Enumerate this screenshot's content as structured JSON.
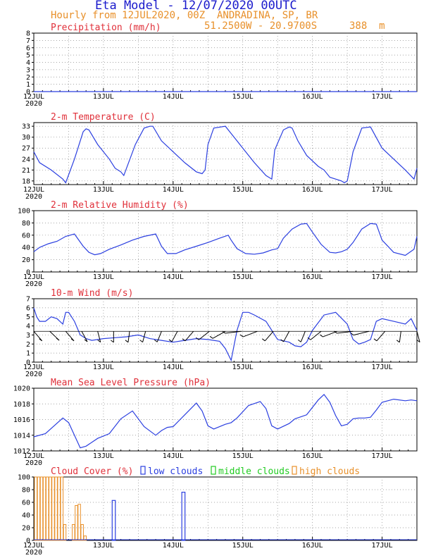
{
  "header": {
    "title": "Eta Model - 12/07/2020 00UTC",
    "subtitle": "Hourly from 12JUL2020, 00Z  ANDRADINA, SP, BR",
    "coords": "51.2500W - 20.9700S",
    "elevation": "388  m"
  },
  "colors": {
    "title": "#1a1acc",
    "subtitle": "#e8902a",
    "panel_title": "#e0303a",
    "series": "#2b3fe0",
    "wind_barb": "#000000",
    "low_clouds": "#2b3fe0",
    "middle_clouds": "#22cc22",
    "high_clouds": "#e8902a"
  },
  "x_axis": {
    "ticks": [
      "12JUL",
      "13JUL",
      "14JUL",
      "15JUL",
      "16JUL",
      "17JUL"
    ],
    "year": "2020",
    "hours": 132
  },
  "chart_data": [
    {
      "type": "line",
      "id": "precip",
      "title": "Precipitation (mm/h)",
      "ylim": [
        0,
        8
      ],
      "yticks": [
        0,
        1,
        2,
        3,
        4,
        5,
        6,
        7,
        8
      ],
      "x_hours": [
        0,
        132
      ],
      "values": [
        0,
        0
      ]
    },
    {
      "type": "line",
      "id": "temp",
      "title": "2-m Temperature (C)",
      "ylim": [
        17,
        34
      ],
      "yticks": [
        18,
        21,
        24,
        27,
        30,
        33
      ],
      "x_hours": [
        0,
        2,
        6,
        10,
        11,
        14,
        17,
        18,
        19,
        22,
        26,
        30,
        28,
        31,
        35,
        38,
        40,
        41,
        44,
        48,
        52,
        56,
        58,
        59,
        60,
        62,
        66,
        68,
        70,
        72,
        76,
        80,
        82,
        83,
        86,
        88,
        89,
        91,
        94,
        98,
        100,
        102,
        104,
        106,
        107,
        108,
        110,
        113,
        116,
        120,
        124,
        128,
        131,
        132
      ],
      "values": [
        26,
        23,
        21,
        18.5,
        17.5,
        24,
        31.5,
        32.3,
        32,
        28,
        24,
        20.5,
        21.5,
        19.5,
        28,
        32.5,
        33,
        33,
        29,
        26,
        23,
        20.5,
        20,
        21,
        28,
        32.5,
        33,
        31,
        29,
        27,
        23,
        19.5,
        18.5,
        26.5,
        32,
        32.8,
        32.5,
        29,
        25,
        22,
        21,
        19,
        18.5,
        18,
        17.5,
        18,
        26,
        32.5,
        32.8,
        27,
        24,
        21,
        18.5,
        21.5
      ]
    },
    {
      "type": "line",
      "id": "rh",
      "title": "2-m Relative Humidity (%)",
      "ylim": [
        0,
        100
      ],
      "yticks": [
        0,
        20,
        40,
        60,
        80,
        100
      ],
      "x_hours": [
        0,
        2,
        5,
        8,
        11,
        14,
        17,
        19,
        21,
        23,
        26,
        30,
        34,
        38,
        42,
        44,
        46,
        49,
        52,
        56,
        60,
        64,
        67,
        68,
        70,
        73,
        76,
        79,
        82,
        84,
        86,
        89,
        92,
        94,
        96,
        99,
        102,
        104,
        106,
        108,
        110,
        113,
        116,
        118,
        120,
        124,
        128,
        131,
        132
      ],
      "values": [
        33,
        40,
        46,
        50,
        58,
        62,
        42,
        32,
        28,
        30,
        37,
        44,
        52,
        58,
        62,
        42,
        30,
        30,
        36,
        42,
        48,
        55,
        60,
        52,
        38,
        30,
        29,
        31,
        36,
        38,
        55,
        70,
        78,
        79,
        65,
        45,
        32,
        31,
        33,
        37,
        48,
        70,
        79,
        78,
        52,
        32,
        27,
        37,
        58
      ]
    },
    {
      "type": "line",
      "id": "wind",
      "title": "10-m Wind (m/s)",
      "ylim": [
        0,
        7
      ],
      "yticks": [
        0,
        1,
        2,
        3,
        4,
        5,
        6,
        7
      ],
      "x_hours": [
        0,
        1,
        2,
        4,
        6,
        8,
        10,
        11,
        12,
        14,
        16,
        18,
        20,
        24,
        28,
        32,
        36,
        40,
        44,
        48,
        52,
        56,
        60,
        64,
        66,
        68,
        70,
        72,
        74,
        76,
        80,
        84,
        88,
        90,
        92,
        94,
        96,
        100,
        104,
        108,
        110,
        112,
        114,
        116,
        118,
        120,
        124,
        128,
        130,
        132
      ],
      "values": [
        6,
        5,
        4.5,
        4.5,
        5,
        4.8,
        4.2,
        5.5,
        5.5,
        4.5,
        3,
        2.6,
        2.4,
        2.6,
        2.7,
        2.8,
        3,
        2.6,
        2.4,
        2.2,
        2.4,
        2.6,
        2.5,
        2.3,
        1.5,
        0.2,
        3.5,
        5.5,
        5.5,
        5.2,
        4.5,
        2.5,
        2.2,
        1.8,
        1.7,
        2.2,
        3.5,
        5.2,
        5.5,
        4.2,
        2.5,
        2,
        2.2,
        2.5,
        4.5,
        4.8,
        4.5,
        4.2,
        4.8,
        3.5
      ],
      "barb_directions_deg": [
        150,
        145,
        150,
        160,
        170,
        180,
        185,
        190,
        195,
        200,
        210,
        220,
        230,
        260,
        300,
        330,
        340,
        345,
        320,
        300,
        280,
        250,
        210,
        185,
        170
      ]
    },
    {
      "type": "line",
      "id": "mslp",
      "title": "Mean Sea Level Pressure (hPa)",
      "ylim": [
        1012,
        1020
      ],
      "yticks": [
        1012,
        1014,
        1016,
        1018,
        1020
      ],
      "x_hours": [
        0,
        4,
        7,
        10,
        12,
        16,
        18,
        22,
        26,
        30,
        34,
        38,
        42,
        44,
        46,
        48,
        52,
        56,
        58,
        60,
        62,
        66,
        68,
        70,
        74,
        78,
        80,
        82,
        84,
        88,
        90,
        94,
        98,
        100,
        102,
        104,
        106,
        108,
        110,
        112,
        114,
        116,
        118,
        120,
        124,
        128,
        130,
        132
      ],
      "values": [
        1013.8,
        1014.2,
        1015.2,
        1016.2,
        1015.6,
        1012.4,
        1012.6,
        1013.6,
        1014.2,
        1016.1,
        1017.1,
        1015.1,
        1014,
        1014.6,
        1015,
        1015.1,
        1016.6,
        1018.1,
        1017.1,
        1015.2,
        1014.8,
        1015.4,
        1015.6,
        1016.2,
        1017.8,
        1018.3,
        1017.4,
        1015.2,
        1014.8,
        1015.5,
        1016.1,
        1016.6,
        1018.5,
        1019.2,
        1018.2,
        1016.5,
        1015.2,
        1015.4,
        1016.1,
        1016.2,
        1016.2,
        1016.3,
        1017.2,
        1018.2,
        1018.6,
        1018.4,
        1018.5,
        1018.4
      ],
      "note": "x from 0 hrs; 1012-1020 hPa"
    },
    {
      "type": "bar",
      "id": "clouds",
      "title": "Cloud Cover (%)",
      "legend": [
        "low clouds",
        "middle clouds",
        "high clouds"
      ],
      "ylim": [
        0,
        100
      ],
      "yticks": [
        0,
        20,
        40,
        60,
        80,
        100
      ],
      "high_hours": [
        0,
        1,
        2,
        3,
        4,
        5,
        6,
        7,
        8,
        9,
        10,
        13,
        14,
        15,
        16,
        17
      ],
      "high_values": [
        100,
        100,
        100,
        100,
        100,
        100,
        100,
        100,
        100,
        100,
        25,
        25,
        55,
        57,
        25,
        7
      ],
      "low_hours": [
        27,
        51
      ],
      "low_values": [
        63,
        76
      ]
    }
  ]
}
